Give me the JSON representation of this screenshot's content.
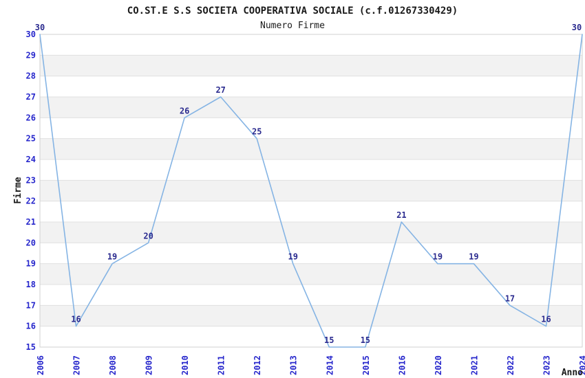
{
  "chart_data": {
    "type": "line",
    "title": "CO.ST.E S.S SOCIETA COOPERATIVA SOCIALE (c.f.01267330429)",
    "subtitle": "Numero Firme",
    "xlabel": "Anno",
    "ylabel": "Firme",
    "categories": [
      "2006",
      "2007",
      "2008",
      "2009",
      "2010",
      "2011",
      "2012",
      "2013",
      "2014",
      "2015",
      "2016",
      "2020",
      "2021",
      "2022",
      "2023",
      "2024"
    ],
    "values": [
      30,
      16,
      19,
      20,
      26,
      27,
      25,
      19,
      15,
      15,
      21,
      19,
      19,
      17,
      16,
      30
    ],
    "ylim": [
      15,
      30
    ],
    "ytick_step": 1,
    "grid": "horizontal",
    "banded_background": true,
    "legend": "none",
    "point_labels_visible": true
  },
  "colors": {
    "line": "#85b4e4",
    "point_label": "#2b2b8f",
    "tick_label": "#2727cc",
    "text": "#1a1a1a",
    "band_fill": "#f2f2f2",
    "gridline": "#e0e0e0",
    "plot_border": "#d0d0d0",
    "background": "#ffffff"
  }
}
